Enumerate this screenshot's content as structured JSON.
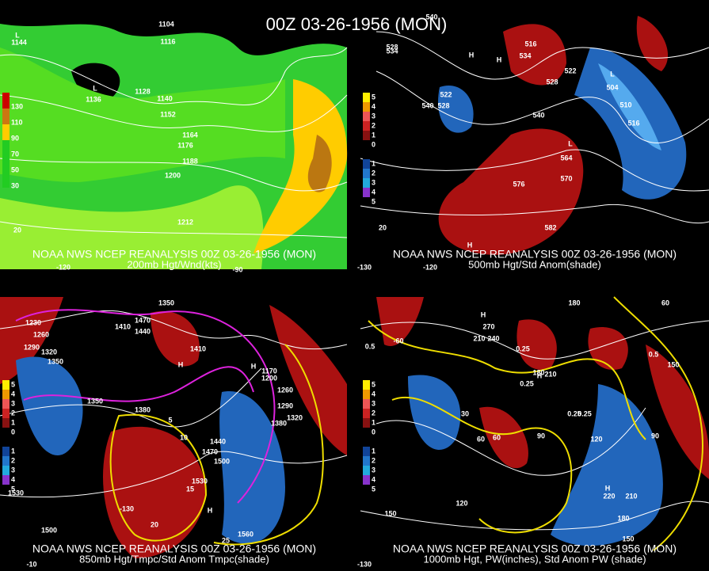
{
  "header": {
    "title": "00Z 03-26-1956 (MON)"
  },
  "panels": [
    {
      "caption": "NOAA NWS NCEP REANALYSIS 00Z 03-26-1956 (MON)",
      "subcaption": "200mb Hgt/Wnd(kts)",
      "legend": [
        "130",
        "110",
        "90",
        "70",
        "50",
        "30"
      ],
      "labels": [
        "1104",
        "1116",
        "1128",
        "1140",
        "1152",
        "1164",
        "1176",
        "1188",
        "1200",
        "1212",
        "L",
        "1144",
        "L",
        "1136",
        "20",
        "-120",
        "-90"
      ]
    },
    {
      "caption": "NOAA NWS NCEP REANALYSIS 00Z 03-26-1956 (MON)",
      "subcaption": "500mb Hgt/Std Anom(shade)",
      "legend": [
        "5",
        "4",
        "3",
        "2",
        "1",
        "0",
        "1",
        "2",
        "3",
        "4",
        "5"
      ],
      "labels": [
        "540",
        "534",
        "528",
        "H",
        "516",
        "534",
        "H",
        "540",
        "528",
        "522",
        "L",
        "504",
        "510",
        "516",
        "540",
        "528",
        "522",
        "L",
        "564",
        "570",
        "576",
        "582",
        "H",
        "20",
        "-130",
        "-120"
      ]
    },
    {
      "caption": "NOAA NWS NCEP REANALYSIS 00Z 03-26-1956 (MON)",
      "subcaption": "850mb Hgt/Tmpc/Std Anom Tmpc(shade)",
      "legend": [
        "5",
        "4",
        "3",
        "2",
        "1",
        "0",
        "1",
        "2",
        "3",
        "4",
        "5"
      ],
      "labels": [
        "1350",
        "1230",
        "1260",
        "1290",
        "1320",
        "1350",
        "1410",
        "1440",
        "1470",
        "H",
        "1410",
        "H",
        "1170",
        "1200",
        "1260",
        "1290",
        "1320",
        "1380",
        "1350",
        "1380",
        "1440",
        "1470",
        "1500",
        "1530",
        "1560",
        "1500",
        "1530",
        "5",
        "10",
        "15",
        "20",
        "25",
        "-10",
        "-130",
        "H"
      ]
    },
    {
      "caption": "NOAA NWS NCEP REANALYSIS 00Z 03-26-1956 (MON)",
      "subcaption": "1000mb Hgt, PW(inches), Std Anom PW (shade)",
      "legend": [
        "5",
        "4",
        "3",
        "2",
        "1",
        "0",
        "1",
        "2",
        "3",
        "4",
        "5"
      ],
      "labels": [
        "180",
        "210",
        "240",
        "270",
        "H",
        "-60",
        "0.5",
        "0.25",
        "0.25",
        "H",
        "210",
        "180",
        "60",
        "90",
        "120",
        "0.25",
        "0.25",
        "30",
        "60",
        "150",
        "H",
        "220",
        "210",
        "180",
        "150",
        "120",
        "0.5",
        "90",
        "150",
        "60",
        "-130"
      ]
    }
  ]
}
